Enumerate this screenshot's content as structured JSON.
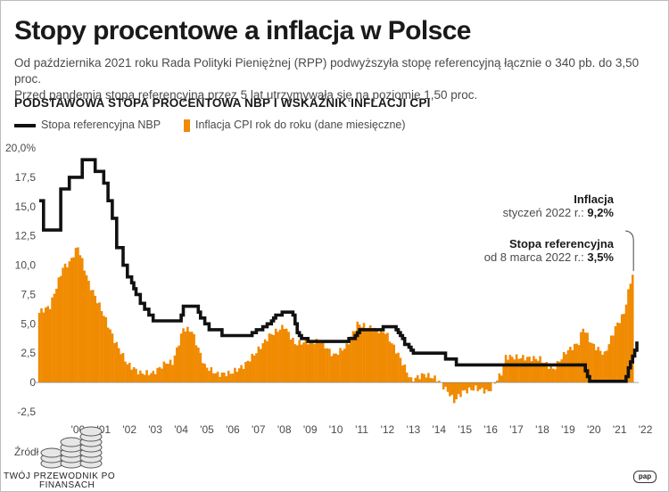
{
  "header": {
    "title": "Stopy procentowe a inflacja w Polsce",
    "subtitle_line1": "Od października 2021 roku Rada Polityki Pieniężnej (RPP) podwyższyła stopę referencyjną łącznie o 340 pb. do 3,50 proc.",
    "subtitle_line2": "Przed pandemią stopa referencyjna przez 5 lat utrzymywała się na poziomie 1,50 proc.",
    "section_title": "PODSTAWOWA STOPA PROCENTOWA NBP I WSKAŹNIK INFLACJI CPI"
  },
  "annotations": {
    "inflation_title": "Inflacja",
    "inflation_date": "styczeń 2022 r.:",
    "inflation_value": "9,2%",
    "rate_title": "Stopa referencyjna",
    "rate_date": "od 8 marca 2022 r.:",
    "rate_value": "3,5%"
  },
  "footer": {
    "source": "Źródł",
    "brand_line1": "TWÓJ PRZEWODNIK PO",
    "brand_line2": "FINANSACH",
    "agency_logo": "pap"
  },
  "colors": {
    "rate_line": "#111111",
    "inflation_bars": "#f08a00"
  },
  "chart_data": {
    "type": "bar",
    "title": "PODSTAWOWA STOPA PROCENTOWA NBP I WSKAŹNIK INFLACJI CPI",
    "ylim": [
      -2.5,
      20
    ],
    "y_ticks": [
      20,
      17.5,
      15,
      12.5,
      10,
      7.5,
      5,
      2.5,
      0,
      -2.5
    ],
    "y_tick_labels": [
      "20,0%",
      "17,5",
      "15,0",
      "12,5",
      "10,0",
      "7,5",
      "5,0",
      "2,5",
      "0",
      "-2,5"
    ],
    "x_range": [
      "1999-01",
      "2022-03"
    ],
    "x_tick_labels": [
      "'00",
      "'01",
      "'02",
      "'03",
      "'04",
      "'05",
      "'06",
      "'07",
      "'08",
      "'09",
      "'10",
      "'11",
      "'12",
      "'13",
      "'14",
      "'15",
      "'16",
      "'17",
      "'18",
      "'19",
      "'20",
      "'21",
      "'22"
    ],
    "grid": false,
    "legend_position": "top-left",
    "series": [
      {
        "name": "Stopa referencyjna NBP",
        "type": "step-line",
        "points": [
          [
            "1999-01",
            15.5
          ],
          [
            "1999-03",
            13.0
          ],
          [
            "1999-11",
            16.5
          ],
          [
            "2000-03",
            17.5
          ],
          [
            "2000-09",
            19.0
          ],
          [
            "2001-03",
            18.0
          ],
          [
            "2001-07",
            17.0
          ],
          [
            "2001-09",
            15.5
          ],
          [
            "2001-11",
            14.0
          ],
          [
            "2002-01",
            11.5
          ],
          [
            "2002-04",
            10.0
          ],
          [
            "2002-06",
            9.0
          ],
          [
            "2002-08",
            8.5
          ],
          [
            "2002-09",
            8.0
          ],
          [
            "2002-10",
            7.5
          ],
          [
            "2002-12",
            6.75
          ],
          [
            "2003-02",
            6.25
          ],
          [
            "2003-04",
            5.75
          ],
          [
            "2003-06",
            5.25
          ],
          [
            "2004-07",
            5.75
          ],
          [
            "2004-08",
            6.5
          ],
          [
            "2005-03",
            6.0
          ],
          [
            "2005-04",
            5.5
          ],
          [
            "2005-06",
            5.0
          ],
          [
            "2005-08",
            4.5
          ],
          [
            "2006-02",
            4.0
          ],
          [
            "2007-04",
            4.25
          ],
          [
            "2007-06",
            4.5
          ],
          [
            "2007-09",
            4.75
          ],
          [
            "2007-11",
            5.0
          ],
          [
            "2008-01",
            5.25
          ],
          [
            "2008-02",
            5.5
          ],
          [
            "2008-03",
            5.75
          ],
          [
            "2008-06",
            6.0
          ],
          [
            "2008-11",
            5.75
          ],
          [
            "2008-12",
            5.0
          ],
          [
            "2009-01",
            4.25
          ],
          [
            "2009-02",
            4.0
          ],
          [
            "2009-03",
            3.75
          ],
          [
            "2009-06",
            3.5
          ],
          [
            "2011-01",
            3.75
          ],
          [
            "2011-04",
            4.0
          ],
          [
            "2011-05",
            4.25
          ],
          [
            "2011-06",
            4.5
          ],
          [
            "2012-05",
            4.75
          ],
          [
            "2012-11",
            4.5
          ],
          [
            "2012-12",
            4.25
          ],
          [
            "2013-01",
            4.0
          ],
          [
            "2013-02",
            3.75
          ],
          [
            "2013-03",
            3.25
          ],
          [
            "2013-05",
            3.0
          ],
          [
            "2013-06",
            2.75
          ],
          [
            "2013-07",
            2.5
          ],
          [
            "2014-10",
            2.0
          ],
          [
            "2015-03",
            1.5
          ],
          [
            "2020-03",
            1.0
          ],
          [
            "2020-04",
            0.5
          ],
          [
            "2020-05",
            0.1
          ],
          [
            "2021-10",
            0.5
          ],
          [
            "2021-11",
            1.25
          ],
          [
            "2021-12",
            1.75
          ],
          [
            "2022-01",
            2.25
          ],
          [
            "2022-02",
            2.75
          ],
          [
            "2022-03",
            3.5
          ]
        ]
      },
      {
        "name": "Inflacja CPI rok do roku (dane miesięczne)",
        "type": "bar",
        "monthly_anchor_points": [
          [
            "1999-01",
            6.0
          ],
          [
            "1999-06",
            6.5
          ],
          [
            "1999-12",
            9.8
          ],
          [
            "2000-03",
            10.2
          ],
          [
            "2000-07",
            11.6
          ],
          [
            "2000-12",
            8.5
          ],
          [
            "2001-06",
            6.2
          ],
          [
            "2001-12",
            3.6
          ],
          [
            "2002-06",
            1.6
          ],
          [
            "2002-12",
            0.8
          ],
          [
            "2003-06",
            0.8
          ],
          [
            "2003-12",
            1.7
          ],
          [
            "2004-03",
            1.7
          ],
          [
            "2004-06",
            3.4
          ],
          [
            "2004-08",
            4.6
          ],
          [
            "2004-12",
            4.4
          ],
          [
            "2005-06",
            1.4
          ],
          [
            "2005-12",
            0.7
          ],
          [
            "2006-06",
            0.8
          ],
          [
            "2006-12",
            1.4
          ],
          [
            "2007-06",
            2.6
          ],
          [
            "2007-12",
            4.0
          ],
          [
            "2008-07",
            4.8
          ],
          [
            "2008-12",
            3.3
          ],
          [
            "2009-06",
            3.5
          ],
          [
            "2009-12",
            3.5
          ],
          [
            "2010-06",
            2.3
          ],
          [
            "2010-12",
            3.1
          ],
          [
            "2011-05",
            5.0
          ],
          [
            "2011-12",
            4.6
          ],
          [
            "2012-06",
            4.3
          ],
          [
            "2012-12",
            2.4
          ],
          [
            "2013-06",
            0.2
          ],
          [
            "2013-12",
            0.7
          ],
          [
            "2014-06",
            0.3
          ],
          [
            "2014-12",
            -1.0
          ],
          [
            "2015-02",
            -1.6
          ],
          [
            "2015-06",
            -0.8
          ],
          [
            "2015-12",
            -0.5
          ],
          [
            "2016-06",
            -0.8
          ],
          [
            "2016-12",
            0.8
          ],
          [
            "2017-02",
            2.2
          ],
          [
            "2017-12",
            2.1
          ],
          [
            "2018-06",
            2.0
          ],
          [
            "2018-12",
            1.1
          ],
          [
            "2019-06",
            2.6
          ],
          [
            "2019-12",
            3.4
          ],
          [
            "2020-02",
            4.7
          ],
          [
            "2020-06",
            3.3
          ],
          [
            "2020-12",
            2.4
          ],
          [
            "2021-05",
            4.7
          ],
          [
            "2021-09",
            5.9
          ],
          [
            "2021-12",
            8.6
          ],
          [
            "2022-01",
            9.2
          ]
        ]
      }
    ]
  }
}
